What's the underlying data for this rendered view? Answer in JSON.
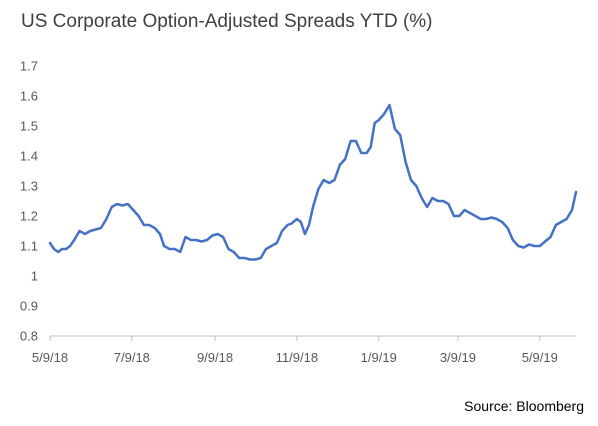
{
  "chart_data": {
    "type": "line",
    "title": "US Corporate Option-Adjusted Spreads YTD (%)",
    "source": "Source: Bloomberg",
    "xlabel": "",
    "ylabel": "",
    "ylim": [
      0.8,
      1.7
    ],
    "ytick_labels": [
      "0.8",
      "0.9",
      "1",
      "1.1",
      "1.2",
      "1.3",
      "1.4",
      "1.5",
      "1.6",
      "1.7"
    ],
    "xtick_labels": [
      "5/9/18",
      "7/9/18",
      "9/9/18",
      "11/9/18",
      "1/9/19",
      "3/9/19",
      "5/9/19"
    ],
    "xticks": [
      "2018-05-09",
      "2018-07-09",
      "2018-09-09",
      "2018-11-09",
      "2019-01-09",
      "2019-03-09",
      "2019-05-09"
    ],
    "xlim": [
      "2018-05-09",
      "2019-06-05"
    ],
    "grid": false,
    "legend": "none",
    "line_color": "#4472C4",
    "series": [
      {
        "x": [
          "2018-05-09",
          "2018-05-12",
          "2018-05-15",
          "2018-05-18",
          "2018-05-21",
          "2018-05-24",
          "2018-05-27",
          "2018-05-31",
          "2018-06-04",
          "2018-06-08",
          "2018-06-12",
          "2018-06-16",
          "2018-06-20",
          "2018-06-24",
          "2018-06-28",
          "2018-07-02",
          "2018-07-06",
          "2018-07-10",
          "2018-07-14",
          "2018-07-18",
          "2018-07-22",
          "2018-07-26",
          "2018-07-30",
          "2018-08-02",
          "2018-08-06",
          "2018-08-10",
          "2018-08-14",
          "2018-08-18",
          "2018-08-22",
          "2018-08-26",
          "2018-08-30",
          "2018-09-03",
          "2018-09-07",
          "2018-09-11",
          "2018-09-15",
          "2018-09-19",
          "2018-09-23",
          "2018-09-27",
          "2018-10-01",
          "2018-10-05",
          "2018-10-09",
          "2018-10-13",
          "2018-10-17",
          "2018-10-21",
          "2018-10-25",
          "2018-10-29",
          "2018-11-02",
          "2018-11-05",
          "2018-11-09",
          "2018-11-12",
          "2018-11-15",
          "2018-11-18",
          "2018-11-21",
          "2018-11-25",
          "2018-11-29",
          "2018-12-03",
          "2018-12-07",
          "2018-12-11",
          "2018-12-15",
          "2018-12-19",
          "2018-12-23",
          "2018-12-27",
          "2018-12-31",
          "2019-01-03",
          "2019-01-06",
          "2019-01-09",
          "2019-01-13",
          "2019-01-17",
          "2019-01-21",
          "2019-01-25",
          "2019-01-29",
          "2019-02-02",
          "2019-02-06",
          "2019-02-10",
          "2019-02-14",
          "2019-02-18",
          "2019-02-22",
          "2019-02-26",
          "2019-03-02",
          "2019-03-06",
          "2019-03-10",
          "2019-03-14",
          "2019-03-18",
          "2019-03-22",
          "2019-03-26",
          "2019-03-30",
          "2019-04-03",
          "2019-04-07",
          "2019-04-11",
          "2019-04-15",
          "2019-04-19",
          "2019-04-23",
          "2019-04-27",
          "2019-05-01",
          "2019-05-05",
          "2019-05-09",
          "2019-05-13",
          "2019-05-17",
          "2019-05-21",
          "2019-05-25",
          "2019-05-29",
          "2019-06-02",
          "2019-06-05"
        ],
        "values": [
          1.11,
          1.09,
          1.08,
          1.09,
          1.09,
          1.1,
          1.12,
          1.15,
          1.14,
          1.15,
          1.155,
          1.16,
          1.19,
          1.23,
          1.24,
          1.235,
          1.24,
          1.22,
          1.2,
          1.17,
          1.17,
          1.16,
          1.14,
          1.1,
          1.09,
          1.09,
          1.08,
          1.13,
          1.12,
          1.12,
          1.115,
          1.12,
          1.135,
          1.14,
          1.13,
          1.09,
          1.08,
          1.06,
          1.06,
          1.055,
          1.055,
          1.06,
          1.09,
          1.1,
          1.11,
          1.15,
          1.17,
          1.175,
          1.19,
          1.18,
          1.14,
          1.17,
          1.23,
          1.29,
          1.32,
          1.31,
          1.32,
          1.37,
          1.39,
          1.45,
          1.45,
          1.41,
          1.41,
          1.43,
          1.51,
          1.52,
          1.54,
          1.57,
          1.49,
          1.47,
          1.38,
          1.32,
          1.3,
          1.26,
          1.23,
          1.26,
          1.25,
          1.25,
          1.24,
          1.2,
          1.2,
          1.22,
          1.21,
          1.2,
          1.19,
          1.19,
          1.195,
          1.19,
          1.18,
          1.16,
          1.12,
          1.1,
          1.095,
          1.105,
          1.1,
          1.1,
          1.115,
          1.13,
          1.17,
          1.18,
          1.19,
          1.22,
          1.28
        ]
      }
    ]
  }
}
